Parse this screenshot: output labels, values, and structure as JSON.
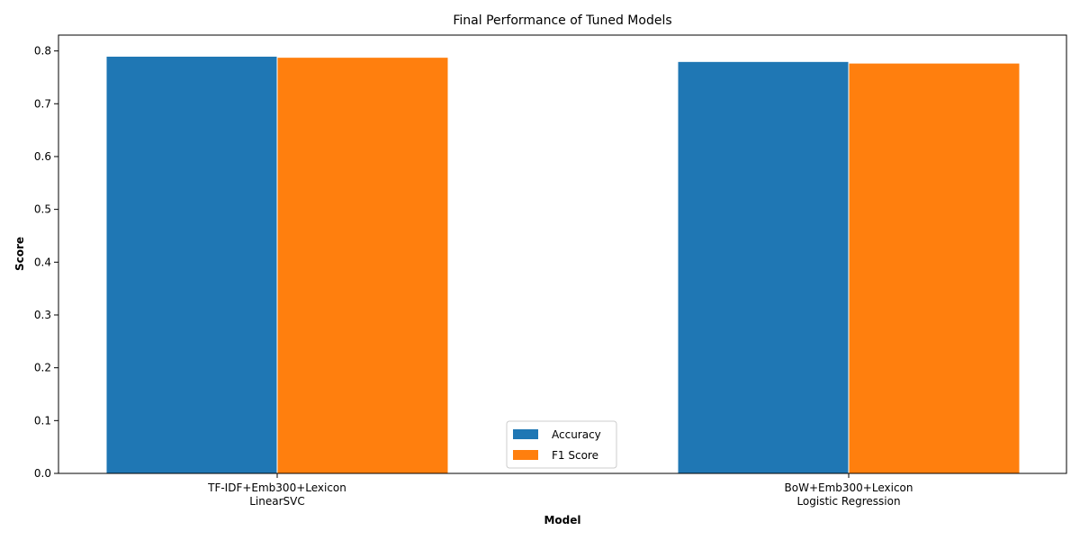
{
  "chart_data": {
    "type": "bar",
    "title": "Final Performance of Tuned Models",
    "xlabel": "Model",
    "ylabel": "Score",
    "categories": [
      [
        "TF-IDF+Emb300+Lexicon",
        "LinearSVC"
      ],
      [
        "BoW+Emb300+Lexicon",
        "Logistic Regression"
      ]
    ],
    "series": [
      {
        "name": "Accuracy",
        "color": "#1f77b4",
        "values": [
          0.79,
          0.78
        ]
      },
      {
        "name": "F1 Score",
        "color": "#ff7f0e",
        "values": [
          0.788,
          0.777
        ]
      }
    ],
    "ylim": [
      0,
      0.83
    ],
    "yticks": [
      "0.0",
      "0.1",
      "0.2",
      "0.3",
      "0.4",
      "0.5",
      "0.6",
      "0.7",
      "0.8"
    ],
    "legend_position": "bottom-center",
    "grid": false
  }
}
